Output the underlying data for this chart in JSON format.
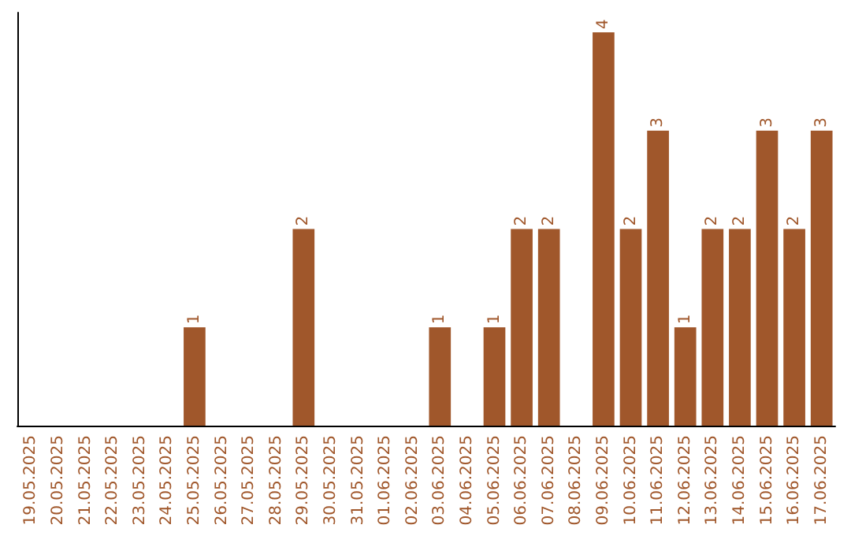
{
  "chart_data": {
    "type": "bar",
    "categories": [
      "19.05.2025",
      "20.05.2025",
      "21.05.2025",
      "22.05.2025",
      "23.05.2025",
      "24.05.2025",
      "25.05.2025",
      "26.05.2025",
      "27.05.2025",
      "28.05.2025",
      "29.05.2025",
      "30.05.2025",
      "31.05.2025",
      "01.06.2025",
      "02.06.2025",
      "03.06.2025",
      "04.06.2025",
      "05.06.2025",
      "06.06.2025",
      "07.06.2025",
      "08.06.2025",
      "09.06.2025",
      "10.06.2025",
      "11.06.2025",
      "12.06.2025",
      "13.06.2025",
      "14.06.2025",
      "15.06.2025",
      "16.06.2025",
      "17.06.2025"
    ],
    "values": [
      0,
      0,
      0,
      0,
      0,
      0,
      1,
      0,
      0,
      0,
      2,
      0,
      0,
      0,
      0,
      1,
      0,
      1,
      2,
      2,
      0,
      4,
      2,
      3,
      1,
      2,
      2,
      3,
      2,
      3
    ],
    "value_labels": [
      null,
      null,
      null,
      null,
      null,
      null,
      "1",
      null,
      null,
      null,
      "2",
      null,
      null,
      null,
      null,
      "1",
      null,
      "1",
      "2",
      "2",
      null,
      "4",
      "2",
      "3",
      "1",
      "2",
      "2",
      "3",
      "2",
      "3"
    ],
    "color": "#a0572b",
    "tick_labels": "x"
  }
}
